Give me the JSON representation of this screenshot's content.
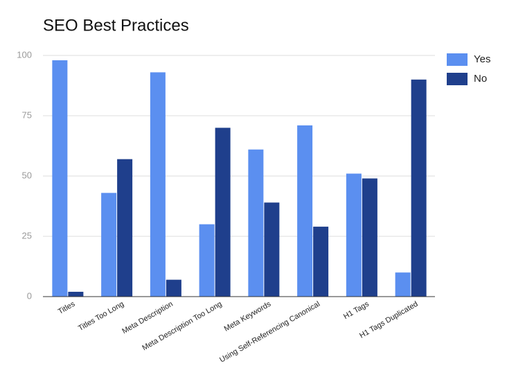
{
  "chart_data": {
    "type": "bar",
    "title": "SEO Best Practices",
    "categories": [
      "Titles",
      "Titles Too Long",
      "Meta Description",
      "Meta Description Too Long",
      "Meta Keywords",
      "Using Self-Referencing Canonical",
      "H1 Tags",
      "H1 Tags Duplicated"
    ],
    "series": [
      {
        "name": "Yes",
        "color": "#5b8ff0",
        "values": [
          98,
          43,
          93,
          30,
          61,
          71,
          51,
          10
        ]
      },
      {
        "name": "No",
        "color": "#1f3f8c",
        "values": [
          2,
          57,
          7,
          70,
          39,
          29,
          49,
          90
        ]
      }
    ],
    "ylim": [
      0,
      100
    ],
    "yticks": [
      0,
      25,
      50,
      75,
      100
    ],
    "grid": true,
    "legend": "right"
  }
}
